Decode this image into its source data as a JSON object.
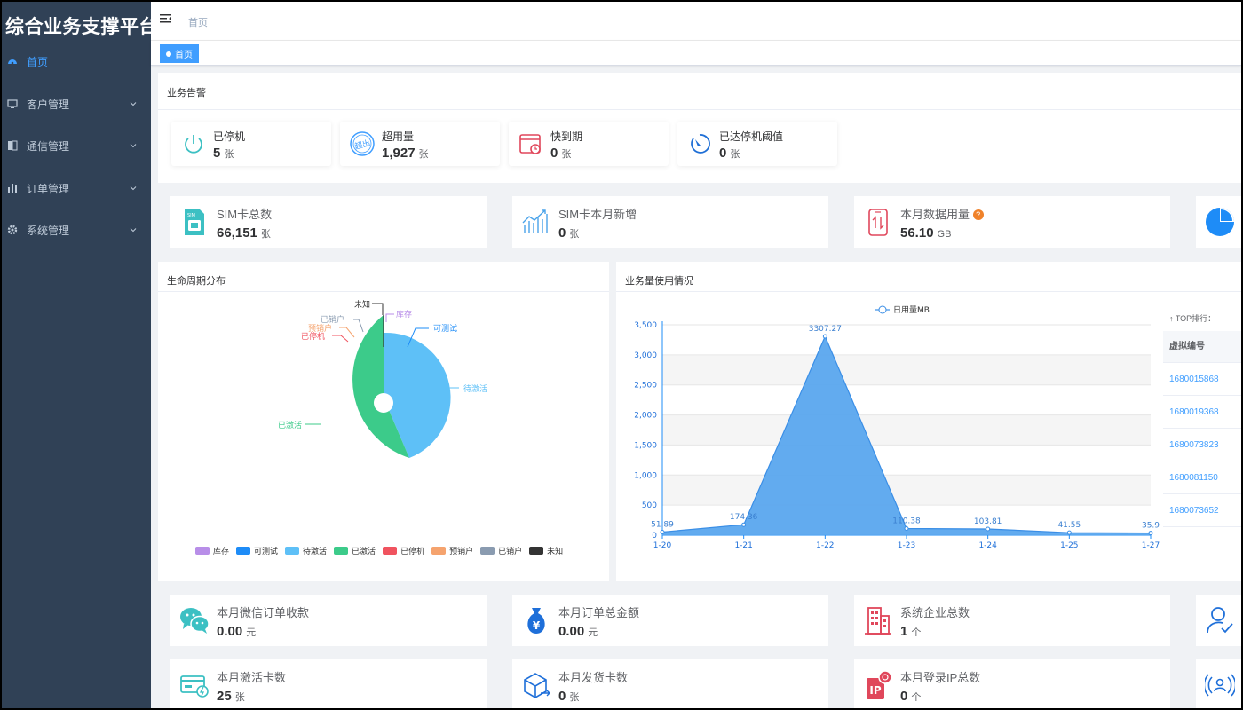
{
  "app": {
    "title": "综合业务支撑平台"
  },
  "colors": {
    "sidebar_bg": "#304156",
    "accent": "#409eff",
    "menu_text": "#bfcbd9"
  },
  "sidebar": {
    "items": [
      {
        "label": "首页",
        "icon": "dashboard-icon",
        "active": true
      },
      {
        "label": "客户管理",
        "icon": "monitor-icon",
        "active": false
      },
      {
        "label": "通信管理",
        "icon": "sim-icon",
        "active": false
      },
      {
        "label": "订单管理",
        "icon": "bar-chart-icon",
        "active": false
      },
      {
        "label": "系统管理",
        "icon": "gear-icon",
        "active": false
      }
    ]
  },
  "navbar": {
    "breadcrumb": "首页"
  },
  "tags": {
    "home": "首页"
  },
  "alerts": {
    "title": "业务告警",
    "items": [
      {
        "label": "已停机",
        "value": "5",
        "unit": "张",
        "icon": "power-icon"
      },
      {
        "label": "超用量",
        "value": "1,927",
        "unit": "张",
        "icon": "overuse-badge-icon"
      },
      {
        "label": "快到期",
        "value": "0",
        "unit": "张",
        "icon": "calendar-clock-icon"
      },
      {
        "label": "已达停机阈值",
        "value": "0",
        "unit": "张",
        "icon": "gauge-icon"
      }
    ]
  },
  "stats_row1": [
    {
      "label": "SIM卡总数",
      "value": "66,151",
      "unit": "张",
      "icon": "sim-card-icon"
    },
    {
      "label": "SIM卡本月新增",
      "value": "0",
      "unit": "张",
      "icon": "growth-chart-icon"
    },
    {
      "label": "本月数据用量",
      "value": "56.10",
      "unit": "GB",
      "icon": "phone-data-icon",
      "help": "?"
    }
  ],
  "lifecycle": {
    "title": "生命周期分布",
    "legend": [
      {
        "name": "库存",
        "color": "#b88ee8"
      },
      {
        "name": "可测试",
        "color": "#1e8cf7"
      },
      {
        "name": "待激活",
        "color": "#5ec0f7"
      },
      {
        "name": "已激活",
        "color": "#3ccb8a"
      },
      {
        "name": "已停机",
        "color": "#f0535f"
      },
      {
        "name": "预销户",
        "color": "#f5a36e"
      },
      {
        "name": "已销户",
        "color": "#8a9bb0"
      },
      {
        "name": "未知",
        "color": "#333333"
      }
    ],
    "labels": [
      {
        "name": "未知",
        "color": "#333333"
      },
      {
        "name": "库存",
        "color": "#b88ee8"
      },
      {
        "name": "已销户",
        "color": "#8a9bb0"
      },
      {
        "name": "可测试",
        "color": "#1e8cf7"
      },
      {
        "name": "预销户",
        "color": "#f5a36e"
      },
      {
        "name": "已停机",
        "color": "#f0535f"
      },
      {
        "name": "待激活",
        "color": "#5ec0f7"
      },
      {
        "name": "已激活",
        "color": "#3ccb8a"
      }
    ]
  },
  "usage": {
    "title": "业务量使用情况",
    "top_title": "↑ TOP排行：",
    "top_header": "虚拟编号",
    "top_rows": [
      "1680015868",
      "1680019368",
      "1680073823",
      "1680081150",
      "1680073652"
    ]
  },
  "chart_data": {
    "type": "area",
    "series": [
      {
        "name": "日用量MB",
        "values": [
          51.89,
          174.36,
          3307.27,
          110.38,
          103.81,
          41.55,
          35.9
        ]
      }
    ],
    "categories": [
      "1-20",
      "1-21",
      "1-22",
      "1-23",
      "1-24",
      "1-25",
      "1-27"
    ],
    "value_labels": [
      "51.89",
      "174.36",
      "3307.27",
      "110.38",
      "103.81",
      "41.55",
      "35.9"
    ],
    "yticks": [
      "0",
      "500",
      "1,000",
      "1,500",
      "2,000",
      "2,500",
      "3,000",
      "3,500"
    ],
    "ylim": [
      0,
      3500
    ],
    "grid": true,
    "color": "#5aa7ee"
  },
  "stats_row2": [
    {
      "label": "本月微信订单收款",
      "value": "0.00",
      "unit": "元",
      "icon": "wechat-icon"
    },
    {
      "label": "本月订单总金额",
      "value": "0.00",
      "unit": "元",
      "icon": "money-bag-icon"
    },
    {
      "label": "系统企业总数",
      "value": "1",
      "unit": "个",
      "icon": "building-icon"
    }
  ],
  "stats_row3": [
    {
      "label": "本月激活卡数",
      "value": "25",
      "unit": "张",
      "icon": "card-activate-icon"
    },
    {
      "label": "本月发货卡数",
      "value": "0",
      "unit": "张",
      "icon": "shipping-box-icon"
    },
    {
      "label": "本月登录IP总数",
      "value": "0",
      "unit": "个",
      "icon": "ip-icon"
    }
  ]
}
